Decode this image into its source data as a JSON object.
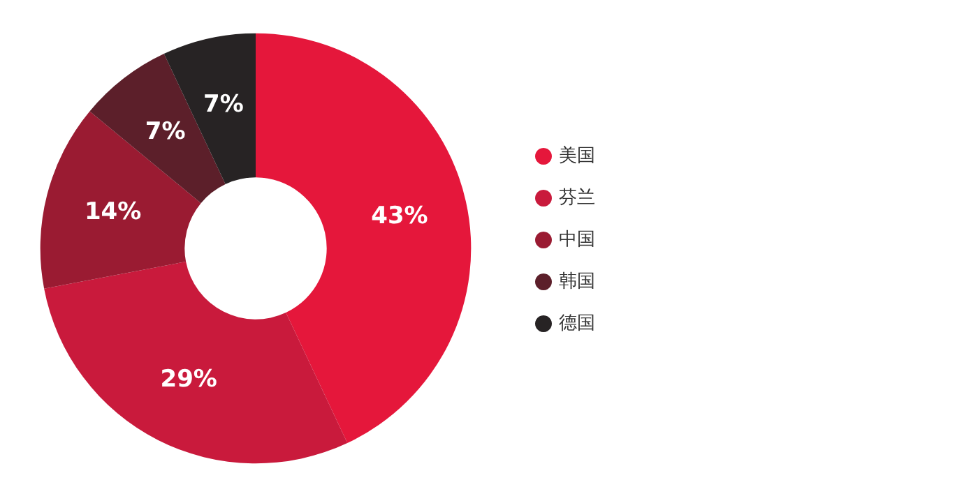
{
  "chart_data": {
    "type": "donut",
    "categories": [
      "美国",
      "芬兰",
      "中国",
      "韩国",
      "德国"
    ],
    "values": [
      43,
      29,
      14,
      7,
      7
    ],
    "colors": [
      "#e5173b",
      "#c91a3c",
      "#9a1b32",
      "#5c1f2a",
      "#272324"
    ],
    "value_labels": [
      "43%",
      "29%",
      "14%",
      "7%",
      "7%"
    ],
    "legend": "right"
  }
}
